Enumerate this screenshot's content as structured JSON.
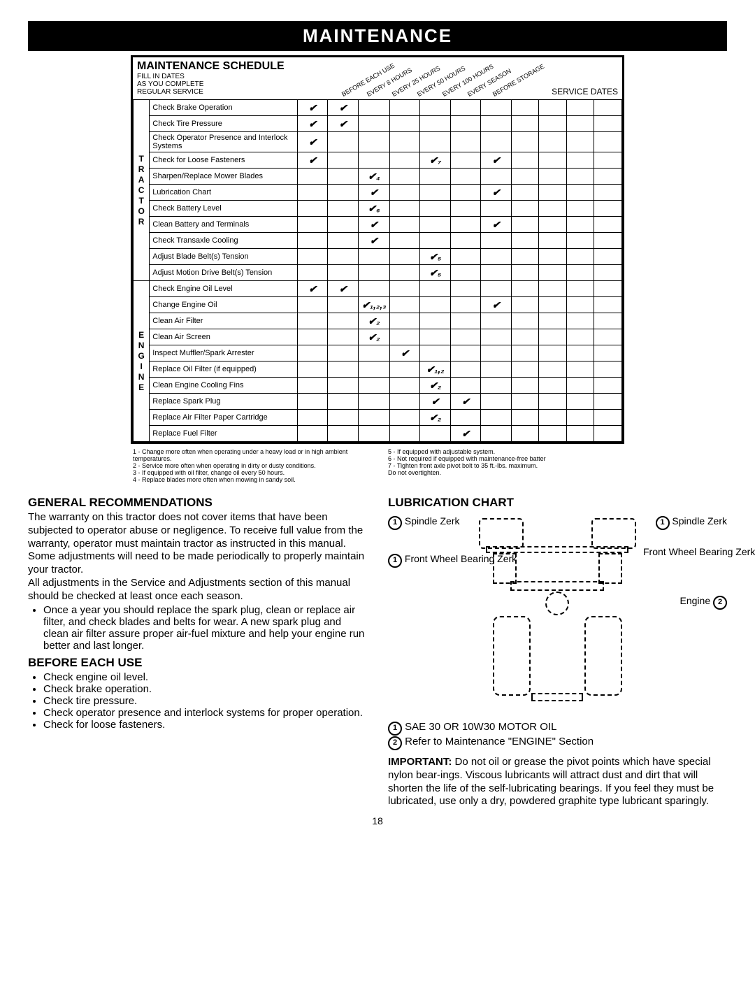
{
  "header": "MAINTENANCE",
  "schedule": {
    "title": "MAINTENANCE SCHEDULE",
    "subtitle1": "FILL IN DATES",
    "subtitle2": "AS YOU COMPLETE",
    "subtitle3": "REGULAR SERVICE",
    "columns": [
      "BEFORE EACH USE",
      "EVERY 8 HOURS",
      "EVERY 25 HOURS",
      "EVERY 50 HOURS",
      "EVERY 100 HOURS",
      "EVERY SEASON",
      "BEFORE STORAGE"
    ],
    "serviceDatesLabel": "SERVICE DATES",
    "groups": [
      {
        "label": "TRACTOR",
        "rows": [
          {
            "task": "Check Brake Operation",
            "checks": [
              "✔",
              "✔",
              "",
              "",
              "",
              "",
              ""
            ]
          },
          {
            "task": "Check Tire Pressure",
            "checks": [
              "✔",
              "✔",
              "",
              "",
              "",
              "",
              ""
            ]
          },
          {
            "task": "Check Operator Presence and Interlock Systems",
            "checks": [
              "✔",
              "",
              "",
              "",
              "",
              "",
              ""
            ]
          },
          {
            "task": "Check for Loose Fasteners",
            "checks": [
              "✔",
              "",
              "",
              "",
              "✔₇",
              "",
              "✔"
            ]
          },
          {
            "task": "Sharpen/Replace Mower Blades",
            "checks": [
              "",
              "",
              "✔₄",
              "",
              "",
              "",
              ""
            ]
          },
          {
            "task": "Lubrication Chart",
            "checks": [
              "",
              "",
              "✔",
              "",
              "",
              "",
              "✔"
            ]
          },
          {
            "task": "Check Battery Level",
            "checks": [
              "",
              "",
              "✔₆",
              "",
              "",
              "",
              ""
            ]
          },
          {
            "task": "Clean Battery and Terminals",
            "checks": [
              "",
              "",
              "✔",
              "",
              "",
              "",
              "✔"
            ]
          },
          {
            "task": "Check Transaxle Cooling",
            "checks": [
              "",
              "",
              "✔",
              "",
              "",
              "",
              ""
            ]
          },
          {
            "task": "Adjust Blade Belt(s) Tension",
            "checks": [
              "",
              "",
              "",
              "",
              "✔₅",
              "",
              ""
            ]
          },
          {
            "task": "Adjust Motion Drive Belt(s) Tension",
            "checks": [
              "",
              "",
              "",
              "",
              "✔₅",
              "",
              ""
            ]
          }
        ]
      },
      {
        "label": "ENGINE",
        "rows": [
          {
            "task": "Check Engine Oil Level",
            "checks": [
              "✔",
              "✔",
              "",
              "",
              "",
              "",
              ""
            ]
          },
          {
            "task": "Change Engine Oil",
            "checks": [
              "",
              "",
              "✔₁,₂,₃",
              "",
              "",
              "",
              "✔"
            ]
          },
          {
            "task": "Clean Air Filter",
            "checks": [
              "",
              "",
              "✔₂",
              "",
              "",
              "",
              ""
            ]
          },
          {
            "task": "Clean Air Screen",
            "checks": [
              "",
              "",
              "✔₂",
              "",
              "",
              "",
              ""
            ]
          },
          {
            "task": "Inspect Muffler/Spark Arrester",
            "checks": [
              "",
              "",
              "",
              "✔",
              "",
              "",
              ""
            ]
          },
          {
            "task": "Replace Oil Filter (if equipped)",
            "checks": [
              "",
              "",
              "",
              "",
              "✔₁,₂",
              "",
              ""
            ]
          },
          {
            "task": "Clean Engine Cooling Fins",
            "checks": [
              "",
              "",
              "",
              "",
              "✔₂",
              "",
              ""
            ]
          },
          {
            "task": "Replace Spark Plug",
            "checks": [
              "",
              "",
              "",
              "",
              "✔",
              "✔",
              ""
            ]
          },
          {
            "task": "Replace Air Filter Paper Cartridge",
            "checks": [
              "",
              "",
              "",
              "",
              "✔₂",
              "",
              ""
            ]
          },
          {
            "task": "Replace Fuel Filter",
            "checks": [
              "",
              "",
              "",
              "",
              "",
              "✔",
              ""
            ]
          }
        ]
      }
    ]
  },
  "footnotes": {
    "left": [
      "1 - Change more often when operating under a heavy load or in high ambient temperatures.",
      "2 - Service more often when operating in dirty or dusty conditions.",
      "3 - If equipped with oil filter, change oil every 50 hours.",
      "4 - Replace blades more often when mowing in sandy soil."
    ],
    "right": [
      "5 - If equipped with adjustable system.",
      "6 - Not required if equipped with maintenance-free batter",
      "7 - Tighten front axle pivot bolt to 35 ft.-lbs. maximum.",
      "     Do not overtighten."
    ]
  },
  "general": {
    "heading": "GENERAL RECOMMENDATIONS",
    "p1": "The warranty on this tractor does not cover items that have been subjected to operator abuse or negligence. To receive full value from the warranty, operator must maintain tractor as instructed in this manual. Some adjustments will need to be made periodically to properly maintain your tractor.",
    "p2": "All adjustments in the Service and Adjustments section of this manual should be checked at least once each season.",
    "bullet1": "Once a year you should replace the spark plug, clean or replace air filter, and check blades and belts for wear. A new spark plug and clean air filter assure proper air-fuel mixture and help your engine run better and last longer."
  },
  "before": {
    "heading": "BEFORE EACH USE",
    "items": [
      "Check engine oil level.",
      "Check brake operation.",
      "Check tire pressure.",
      "Check operator presence and interlock systems for proper operation.",
      "Check for loose fasteners."
    ]
  },
  "lube": {
    "heading": "LUBRICATION CHART",
    "labels": {
      "spindleZerkL": "Spindle Zerk",
      "spindleZerkR": "Spindle Zerk",
      "frontWheelBearingZerkL": "Front Wheel Bearing Zerk",
      "frontWheelBearingZerkR": "Front Wheel Bearing Zerk",
      "engine": "Engine"
    },
    "note1": "SAE 30 OR 10W30 MOTOR OIL",
    "note2": "Refer to Maintenance \"ENGINE\" Section",
    "importantLabel": "IMPORTANT:",
    "importantText": " Do not oil or grease the pivot points which have special nylon bear-ings. Viscous lubricants will attract dust and dirt that will shorten the life of the self-lubricating bearings. If you feel they must be lubricated, use only a dry, powdered graphite type lubricant sparingly."
  },
  "pageNumber": "18"
}
